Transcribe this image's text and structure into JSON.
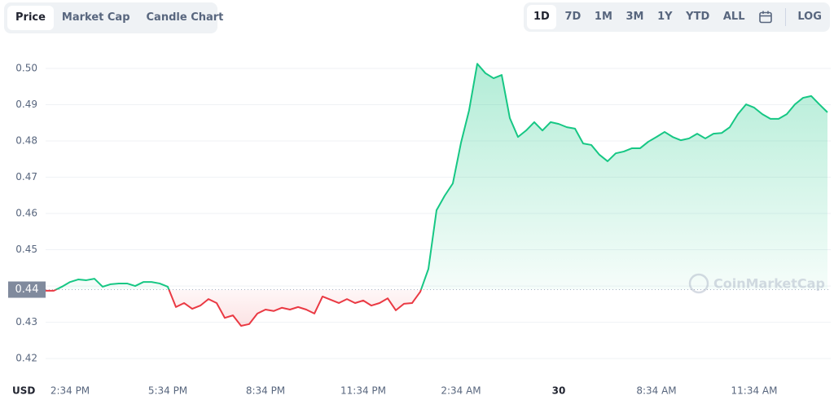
{
  "ui": {
    "tabs": [
      "Price",
      "Market Cap",
      "Candle Chart"
    ],
    "ranges": [
      "1D",
      "7D",
      "1M",
      "3M",
      "1Y",
      "YTD",
      "ALL"
    ],
    "log": "LOG"
  },
  "chart_data": {
    "type": "line",
    "y_label": "USD",
    "watermark": "CoinMarketCap",
    "categories": [
      null,
      null,
      null,
      "2:34 PM",
      null,
      null,
      null,
      null,
      null,
      null,
      null,
      null,
      null,
      null,
      null,
      "5:34 PM",
      null,
      null,
      null,
      null,
      null,
      null,
      null,
      null,
      null,
      null,
      null,
      "8:34 PM",
      null,
      null,
      null,
      null,
      null,
      null,
      null,
      null,
      null,
      null,
      null,
      "11:34 PM",
      null,
      null,
      null,
      null,
      null,
      null,
      null,
      null,
      null,
      null,
      null,
      "2:34 AM",
      null,
      null,
      null,
      null,
      null,
      null,
      null,
      null,
      null,
      null,
      null,
      "30",
      null,
      null,
      null,
      null,
      null,
      null,
      null,
      null,
      null,
      null,
      null,
      "8:34 AM",
      null,
      null,
      null,
      null,
      null,
      null,
      null,
      null,
      null,
      null,
      null,
      "11:34 AM",
      null,
      null,
      null,
      null,
      null,
      null,
      null,
      null,
      null
    ],
    "values": [
      0.4387,
      0.4387,
      0.4398,
      0.4411,
      0.4418,
      0.4416,
      0.442,
      0.4398,
      0.4405,
      0.4407,
      0.4407,
      0.44,
      0.4411,
      0.4411,
      0.4407,
      0.4398,
      0.4342,
      0.4353,
      0.4337,
      0.4346,
      0.4364,
      0.4353,
      0.4312,
      0.4319,
      0.429,
      0.4295,
      0.4324,
      0.4335,
      0.4331,
      0.434,
      0.4335,
      0.4342,
      0.4335,
      0.4324,
      0.4371,
      0.4362,
      0.4353,
      0.4364,
      0.4353,
      0.436,
      0.4346,
      0.4353,
      0.4366,
      0.4333,
      0.4351,
      0.4353,
      0.4384,
      0.4447,
      0.4609,
      0.4649,
      0.4683,
      0.4795,
      0.4885,
      0.5013,
      0.4987,
      0.4973,
      0.4982,
      0.4863,
      0.4811,
      0.4829,
      0.4852,
      0.4829,
      0.4852,
      0.4847,
      0.4838,
      0.4834,
      0.4793,
      0.4789,
      0.4762,
      0.4744,
      0.4766,
      0.4771,
      0.478,
      0.478,
      0.4798,
      0.4811,
      0.4825,
      0.4811,
      0.4802,
      0.4807,
      0.482,
      0.4807,
      0.482,
      0.4822,
      0.4838,
      0.4874,
      0.4901,
      0.4892,
      0.4874,
      0.4861,
      0.4861,
      0.4874,
      0.4901,
      0.4919,
      0.4924,
      0.4901,
      0.4879
    ],
    "baseline": {
      "value": 0.439,
      "label": "0.44"
    },
    "up_color": "#16c784",
    "down_color": "#ea3943",
    "ylim": [
      0.4144,
      0.5054
    ],
    "yticks": [
      {
        "value": 0.42,
        "label": "0.42"
      },
      0.43,
      0.44,
      0.45,
      0.46,
      0.47,
      0.48,
      0.49,
      {
        "value": 0.5,
        "label": "0.50"
      }
    ],
    "grid": true
  }
}
